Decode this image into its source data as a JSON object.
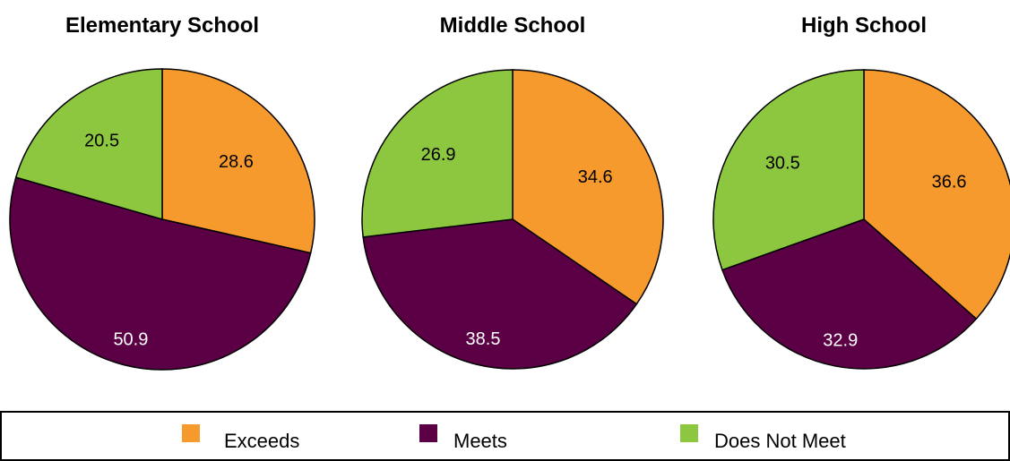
{
  "chart_data": [
    {
      "type": "pie",
      "title": "Elementary School",
      "categories": [
        "Exceeds",
        "Meets",
        "Does Not Meet"
      ],
      "values": [
        28.6,
        50.9,
        20.5
      ]
    },
    {
      "type": "pie",
      "title": "Middle School",
      "categories": [
        "Exceeds",
        "Meets",
        "Does Not Meet"
      ],
      "values": [
        34.6,
        38.5,
        26.9
      ]
    },
    {
      "type": "pie",
      "title": "High School",
      "categories": [
        "Exceeds",
        "Meets",
        "Does Not Meet"
      ],
      "values": [
        36.6,
        32.9,
        30.5
      ]
    }
  ],
  "legend": {
    "placement": "bottom",
    "items": [
      {
        "label": "Exceeds",
        "color": "#F79A2E"
      },
      {
        "label": "Meets",
        "color": "#5C0046"
      },
      {
        "label": "Does Not Meet",
        "color": "#8DC63F"
      }
    ]
  },
  "label_colors": [
    "#000000",
    "#FFFFFF",
    "#000000"
  ],
  "outline_color": "#000000"
}
